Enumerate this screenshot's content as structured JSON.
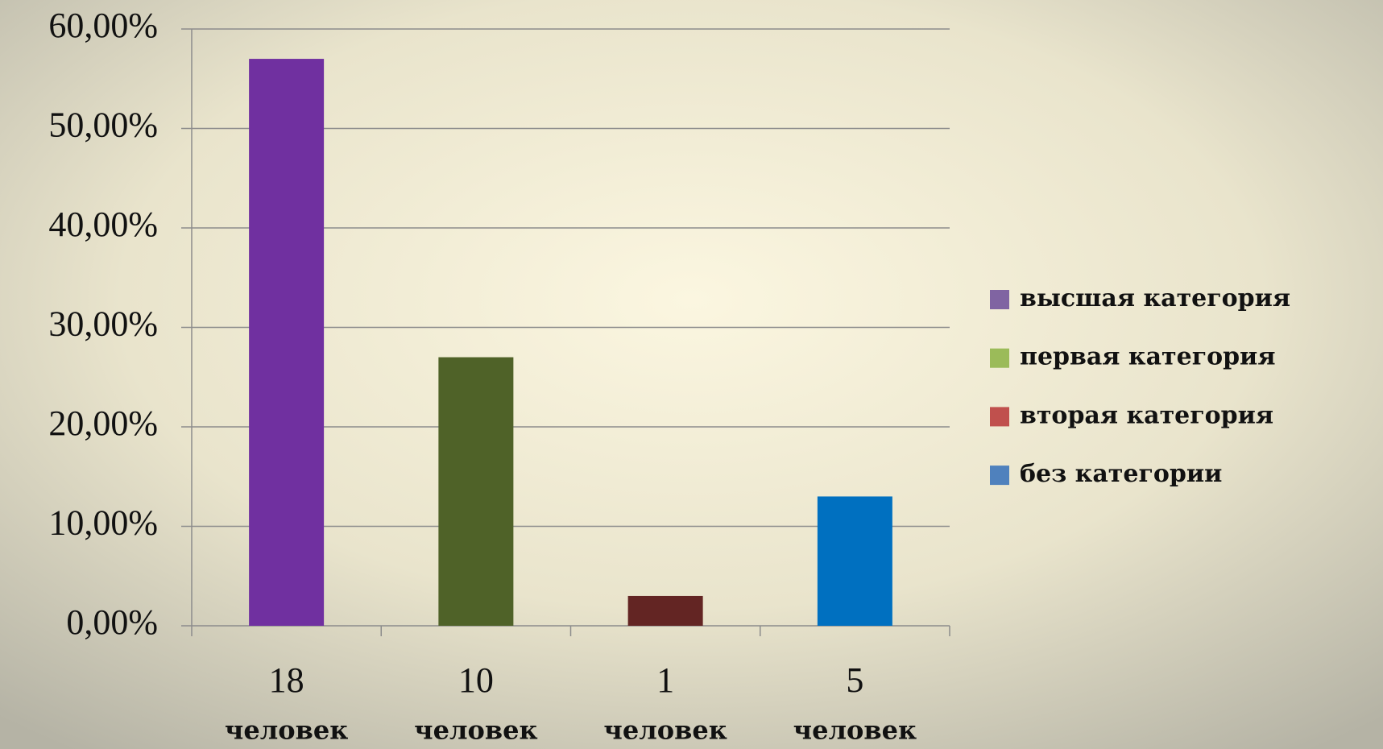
{
  "chart_data": {
    "type": "bar",
    "categories": [
      [
        "18",
        "человек"
      ],
      [
        "10",
        "человек"
      ],
      [
        "1",
        "человек"
      ],
      [
        "5",
        "человек"
      ]
    ],
    "values": [
      57,
      27,
      3,
      13
    ],
    "bar_colors": [
      "#7030a0",
      "#4f6228",
      "#632523",
      "#0070c0"
    ],
    "legend": [
      {
        "name": "высшая категория",
        "color": "#8064a2"
      },
      {
        "name": "первая категория",
        "color": "#9bbb59"
      },
      {
        "name": "вторая категория",
        "color": "#c0504d"
      },
      {
        "name": "без категории",
        "color": "#4f81bd"
      }
    ],
    "ylim": [
      0,
      60
    ],
    "yticks": [
      {
        "value": 0,
        "label": "0,00%"
      },
      {
        "value": 10,
        "label": "10,00%"
      },
      {
        "value": 20,
        "label": "20,00%"
      },
      {
        "value": 30,
        "label": "30,00%"
      },
      {
        "value": 40,
        "label": "40,00%"
      },
      {
        "value": 50,
        "label": "50,00%"
      },
      {
        "value": 60,
        "label": "60,00%"
      }
    ],
    "grid": true
  }
}
